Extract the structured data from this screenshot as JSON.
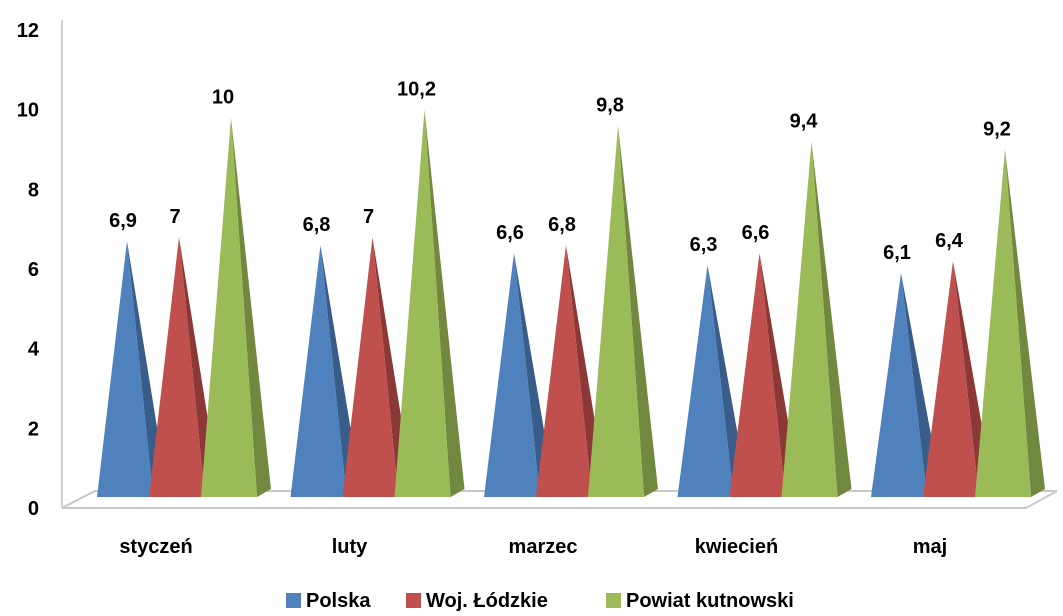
{
  "chart_data": {
    "type": "bar",
    "style": "3d-pyramid",
    "categories": [
      "styczeń",
      "luty",
      "marzec",
      "kwiecień",
      "maj"
    ],
    "series": [
      {
        "name": "Polska",
        "values": [
          6.9,
          6.8,
          6.6,
          6.3,
          6.1
        ],
        "labels": [
          "6,9",
          "6,8",
          "6,6",
          "6,3",
          "6,1"
        ],
        "color": "#4F81BD",
        "dark": "#385D8A"
      },
      {
        "name": "Woj. Łódzkie",
        "values": [
          7,
          7,
          6.8,
          6.6,
          6.4
        ],
        "labels": [
          "7",
          "7",
          "6,8",
          "6,6",
          "6,4"
        ],
        "color": "#C0504D",
        "dark": "#8C3836"
      },
      {
        "name": "Powiat kutnowski",
        "values": [
          10,
          10.2,
          9.8,
          9.4,
          9.2
        ],
        "labels": [
          "10",
          "10,2",
          "9,8",
          "9,4",
          "9,2"
        ],
        "color": "#9BBB59",
        "dark": "#71893F"
      }
    ],
    "yticks": [
      "0",
      "2",
      "4",
      "6",
      "8",
      "10",
      "12"
    ],
    "ylim": [
      0,
      12
    ],
    "title": "",
    "xlabel": "",
    "ylabel": "",
    "grid": false,
    "legend": "bottom"
  }
}
